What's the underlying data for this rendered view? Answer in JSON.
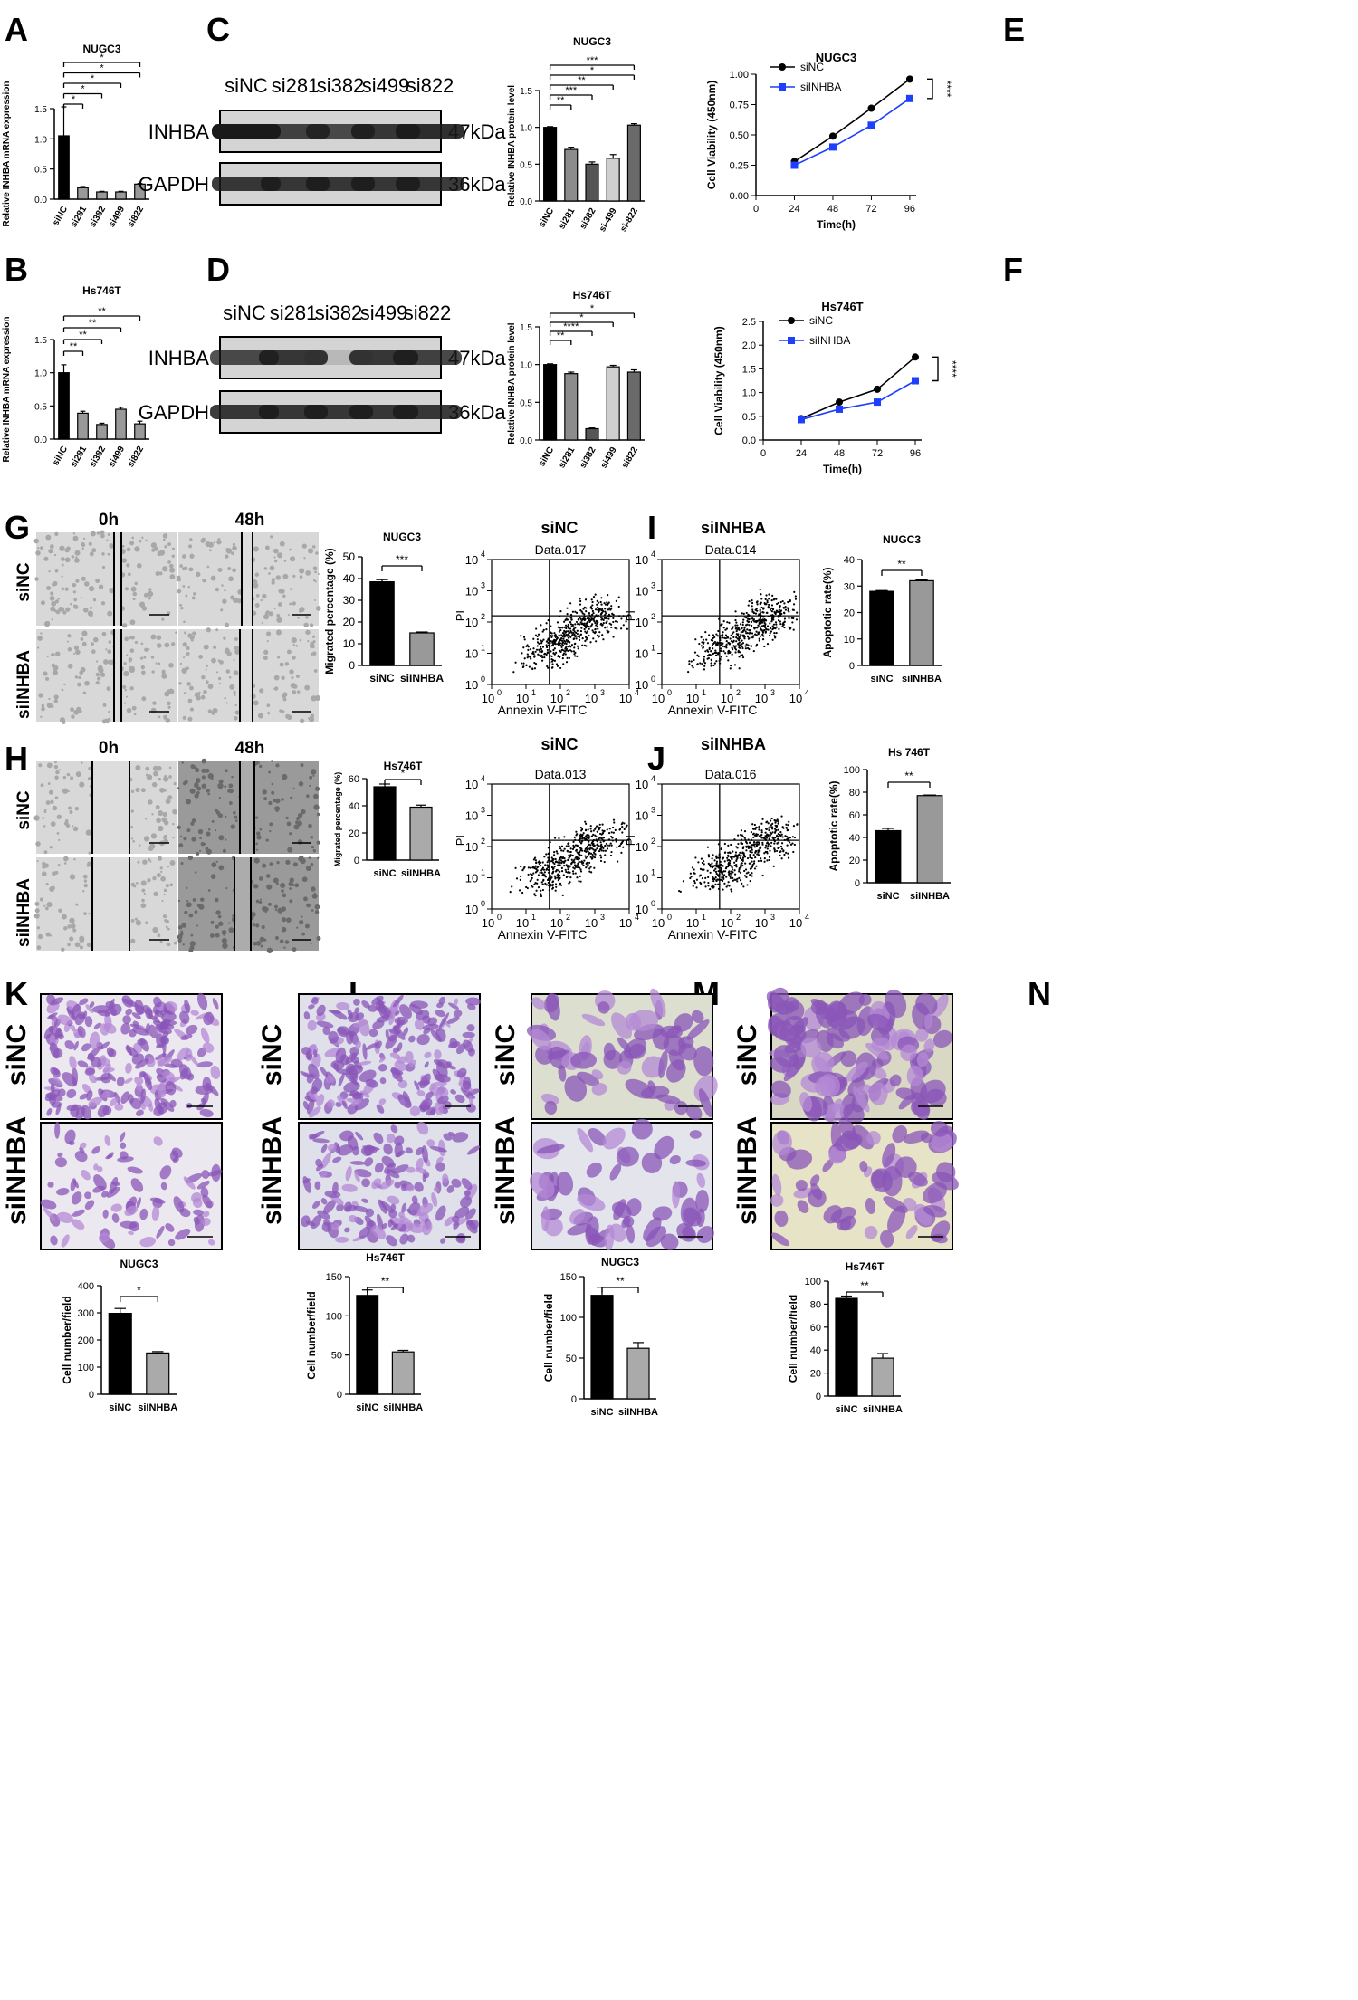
{
  "figure": {
    "panels": {
      "A": {
        "letter": "A",
        "chart_ref": 0
      },
      "B": {
        "letter": "B",
        "chart_ref": 1
      },
      "C": {
        "letter": "C",
        "blot": {
          "lanes": [
            "siNC",
            "si281",
            "si382",
            "si499",
            "si822"
          ],
          "rows": [
            "INHBA",
            "GAPDH"
          ],
          "sizes": [
            "47kDa",
            "36kDa"
          ]
        },
        "chart_ref": 2
      },
      "D": {
        "letter": "D",
        "blot": {
          "lanes": [
            "siNC",
            "si281",
            "si382",
            "si499",
            "si822"
          ],
          "rows": [
            "INHBA",
            "GAPDH"
          ],
          "sizes": [
            "47kDa",
            "36kDa"
          ]
        },
        "chart_ref": 3
      },
      "E": {
        "letter": "E",
        "chart_ref": 4
      },
      "F": {
        "letter": "F",
        "chart_ref": 5
      },
      "G": {
        "letter": "G",
        "times": [
          "0h",
          "48h"
        ],
        "rows": [
          "siNC",
          "siINHBA"
        ],
        "chart_ref": 6
      },
      "H": {
        "letter": "H",
        "times": [
          "0h",
          "48h"
        ],
        "rows": [
          "siNC",
          "siINHBA"
        ],
        "chart_ref": 7
      },
      "I": {
        "letter": "I",
        "groups": [
          "siNC",
          "siINHBA"
        ],
        "plots": [
          "Data.017",
          "Data.014"
        ],
        "chart_ref": 8
      },
      "J": {
        "letter": "J",
        "groups": [
          "siNC",
          "siINHBA"
        ],
        "plots": [
          "Data.013",
          "Data.016"
        ],
        "chart_ref": 9
      },
      "K": {
        "letter": "K",
        "rows": [
          "siNC",
          "siINHBA"
        ],
        "chart_ref": 10
      },
      "L": {
        "letter": "L",
        "rows": [
          "siNC",
          "siINHBA"
        ],
        "chart_ref": 11
      },
      "M": {
        "letter": "M",
        "rows": [
          "siNC",
          "siINHBA"
        ],
        "chart_ref": 12
      },
      "N": {
        "letter": "N",
        "rows": [
          "siNC",
          "siINHBA"
        ],
        "chart_ref": 13
      }
    },
    "flow": {
      "ylabel": "PI",
      "xlabel": "Annexin V-FITC",
      "tick_base": "10",
      "tick_exps": [
        "0",
        "1",
        "2",
        "3",
        "4"
      ]
    },
    "colors": {
      "black": "#000000",
      "gray": "#8c8c8c",
      "light": "#d9d9d9",
      "dark": "#555555",
      "blue": "#1f3fff",
      "stain": "#8a55b8",
      "blot_bg": "#d4d4d4"
    }
  },
  "chart_data": [
    {
      "panel": "A",
      "type": "bar",
      "title": "NUGC3",
      "categories": [
        "siNC",
        "si281",
        "si382",
        "si499",
        "si822"
      ],
      "values": [
        1.05,
        0.19,
        0.12,
        0.12,
        0.25
      ],
      "errors": [
        0.48,
        0.02,
        0.01,
        0.01,
        0.01
      ],
      "ylabel": "Relative INHBA mRNA expression",
      "ylim": [
        0,
        1.5
      ],
      "yticks": [
        "0.0",
        "0.5",
        "1.0",
        "1.5"
      ],
      "ytick_values": [
        0,
        0.5,
        1,
        1.5
      ],
      "bar_colors": [
        "#000000",
        "#999999",
        "#999999",
        "#999999",
        "#999999"
      ],
      "significance": [
        "*",
        "*",
        "*",
        "*",
        "*"
      ]
    },
    {
      "panel": "B",
      "type": "bar",
      "title": "Hs746T",
      "categories": [
        "siNC",
        "si281",
        "si382",
        "si499",
        "si822"
      ],
      "values": [
        1.0,
        0.39,
        0.22,
        0.45,
        0.23
      ],
      "errors": [
        0.12,
        0.03,
        0.02,
        0.03,
        0.04
      ],
      "ylabel": "Relative INHBA mRNA expression",
      "ylim": [
        0,
        1.5
      ],
      "yticks": [
        "0.0",
        "0.5",
        "1.0",
        "1.5"
      ],
      "ytick_values": [
        0,
        0.5,
        1,
        1.5
      ],
      "bar_colors": [
        "#000000",
        "#999999",
        "#999999",
        "#999999",
        "#999999"
      ],
      "significance": [
        "**",
        "**",
        "**",
        "**"
      ]
    },
    {
      "panel": "C",
      "type": "bar",
      "title": "NUGC3",
      "categories": [
        "siNC",
        "si281",
        "si382",
        "si-499",
        "si-822"
      ],
      "values": [
        1.0,
        0.7,
        0.5,
        0.58,
        1.03
      ],
      "errors": [
        0.01,
        0.03,
        0.03,
        0.05,
        0.02
      ],
      "ylabel": "Relative INHBA protein level",
      "ylim": [
        0,
        1.5
      ],
      "yticks": [
        "0.0",
        "0.5",
        "1.0",
        "1.5"
      ],
      "ytick_values": [
        0,
        0.5,
        1,
        1.5
      ],
      "bar_colors": [
        "#000000",
        "#8c8c8c",
        "#555555",
        "#cfcfcf",
        "#6a6a6a"
      ],
      "significance": [
        "**",
        "***",
        "**",
        "*",
        "***"
      ]
    },
    {
      "panel": "D",
      "type": "bar",
      "title": "Hs746T",
      "categories": [
        "siNC",
        "si281",
        "si382",
        "si499",
        "si822"
      ],
      "values": [
        1.0,
        0.88,
        0.15,
        0.97,
        0.9
      ],
      "errors": [
        0.01,
        0.02,
        0.01,
        0.02,
        0.03
      ],
      "ylabel": "Relative INHBA protein level",
      "ylim": [
        0,
        1.5
      ],
      "yticks": [
        "0.0",
        "0.5",
        "1.0",
        "1.5"
      ],
      "ytick_values": [
        0,
        0.5,
        1,
        1.5
      ],
      "bar_colors": [
        "#000000",
        "#8c8c8c",
        "#555555",
        "#cfcfcf",
        "#6a6a6a"
      ],
      "significance": [
        "**",
        "****",
        "*",
        "*"
      ]
    },
    {
      "panel": "E",
      "type": "line",
      "title": "NUGC3",
      "x": [
        24,
        48,
        72,
        96
      ],
      "series": [
        {
          "name": "siNC",
          "values": [
            0.28,
            0.49,
            0.72,
            0.96
          ],
          "errors": [
            0.01,
            0.01,
            0.01,
            0.02
          ]
        },
        {
          "name": "siINHBA",
          "values": [
            0.25,
            0.4,
            0.58,
            0.8
          ],
          "errors": [
            0.01,
            0.01,
            0.01,
            0.01
          ]
        }
      ],
      "xlabel": "Time(h)",
      "ylabel": "Cell Viability (450nm)",
      "ylim": [
        0,
        1
      ],
      "xlim": [
        0,
        100
      ],
      "xticks": [
        "0",
        "24",
        "48",
        "72",
        "96"
      ],
      "yticks": [
        "0.00",
        "0.25",
        "0.50",
        "0.75",
        "1.00"
      ],
      "significance": "****"
    },
    {
      "panel": "F",
      "type": "line",
      "title": "Hs746T",
      "x": [
        24,
        48,
        72,
        96
      ],
      "series": [
        {
          "name": "siNC",
          "values": [
            0.45,
            0.8,
            1.07,
            1.75
          ],
          "errors": [
            0.01,
            0.02,
            0.02,
            0.04
          ]
        },
        {
          "name": "siINHBA",
          "values": [
            0.43,
            0.65,
            0.8,
            1.25
          ],
          "errors": [
            0.01,
            0.01,
            0.01,
            0.03
          ]
        }
      ],
      "xlabel": "Time(h)",
      "ylabel": "Cell Viability (450nm)",
      "ylim": [
        0,
        2.5
      ],
      "xlim": [
        0,
        100
      ],
      "xticks": [
        "0",
        "24",
        "48",
        "72",
        "96"
      ],
      "yticks": [
        "0.0",
        "0.5",
        "1.0",
        "1.5",
        "2.0",
        "2.5"
      ],
      "significance": "****"
    },
    {
      "panel": "G",
      "type": "bar",
      "title": "NUGC3",
      "categories": [
        "siNC",
        "siINHBA"
      ],
      "values": [
        38.5,
        15
      ],
      "errors": [
        1,
        0.4
      ],
      "ylabel": "Migrated percentage (%)",
      "ylim": [
        0,
        50
      ],
      "yticks": [
        "0",
        "10",
        "20",
        "30",
        "40",
        "50"
      ],
      "ytick_values": [
        0,
        10,
        20,
        30,
        40,
        50
      ],
      "bar_colors": [
        "#000000",
        "#999999"
      ],
      "significance": [
        "***"
      ]
    },
    {
      "panel": "H",
      "type": "bar",
      "title": "Hs746T",
      "categories": [
        "siNC",
        "siINHBA"
      ],
      "values": [
        54,
        39
      ],
      "errors": [
        2,
        1.5
      ],
      "ylabel": "Migrated percentage (%)",
      "ylim": [
        0,
        60
      ],
      "yticks": [
        "0",
        "20",
        "40",
        "60"
      ],
      "ytick_values": [
        0,
        20,
        40,
        60
      ],
      "bar_colors": [
        "#000000",
        "#aaaaaa"
      ],
      "significance": [
        "*"
      ]
    },
    {
      "panel": "I",
      "type": "bar",
      "title": "NUGC3",
      "categories": [
        "siNC",
        "siINHBA"
      ],
      "values": [
        28,
        32
      ],
      "errors": [
        0.3,
        0.3
      ],
      "ylabel": "Apoptotic rate(%)",
      "ylim": [
        0,
        40
      ],
      "yticks": [
        "0",
        "10",
        "20",
        "30",
        "40"
      ],
      "ytick_values": [
        0,
        10,
        20,
        30,
        40
      ],
      "bar_colors": [
        "#000000",
        "#999999"
      ],
      "significance": [
        "**"
      ]
    },
    {
      "panel": "J",
      "type": "bar",
      "title": "Hs 746T",
      "categories": [
        "siNC",
        "siINHBA"
      ],
      "values": [
        46,
        77
      ],
      "errors": [
        2,
        0.5
      ],
      "ylabel": "Apoptotic rate(%)",
      "ylim": [
        0,
        100
      ],
      "yticks": [
        "0",
        "20",
        "40",
        "60",
        "80",
        "100"
      ],
      "ytick_values": [
        0,
        20,
        40,
        60,
        80,
        100
      ],
      "bar_colors": [
        "#000000",
        "#999999"
      ],
      "significance": [
        "**"
      ]
    },
    {
      "panel": "K",
      "type": "bar",
      "title": "NUGC3",
      "categories": [
        "siNC",
        "siINHBA"
      ],
      "values": [
        298,
        152
      ],
      "errors": [
        18,
        5
      ],
      "ylabel": "Cell number/field",
      "ylim": [
        0,
        400
      ],
      "yticks": [
        "0",
        "100",
        "200",
        "300",
        "400"
      ],
      "ytick_values": [
        0,
        100,
        200,
        300,
        400
      ],
      "bar_colors": [
        "#000000",
        "#aaaaaa"
      ],
      "significance": [
        "*"
      ]
    },
    {
      "panel": "L",
      "type": "bar",
      "title": "Hs746T",
      "categories": [
        "siNC",
        "siINHBA"
      ],
      "values": [
        126,
        54
      ],
      "errors": [
        7,
        2
      ],
      "ylabel": "Cell number/field",
      "ylim": [
        0,
        150
      ],
      "yticks": [
        "0",
        "50",
        "100",
        "150"
      ],
      "ytick_values": [
        0,
        50,
        100,
        150
      ],
      "bar_colors": [
        "#000000",
        "#aaaaaa"
      ],
      "significance": [
        "**"
      ]
    },
    {
      "panel": "M",
      "type": "bar",
      "title": "NUGC3",
      "categories": [
        "siNC",
        "siINHBA"
      ],
      "values": [
        127,
        62
      ],
      "errors": [
        10,
        7
      ],
      "ylabel": "Cell number/field",
      "ylim": [
        0,
        150
      ],
      "yticks": [
        "0",
        "50",
        "100",
        "150"
      ],
      "ytick_values": [
        0,
        50,
        100,
        150
      ],
      "bar_colors": [
        "#000000",
        "#aaaaaa"
      ],
      "significance": [
        "**"
      ]
    },
    {
      "panel": "N",
      "type": "bar",
      "title": "Hs746T",
      "categories": [
        "siNC",
        "siINHBA"
      ],
      "values": [
        85,
        33
      ],
      "errors": [
        2,
        4
      ],
      "ylabel": "Cell number/field",
      "ylim": [
        0,
        100
      ],
      "yticks": [
        "0",
        "20",
        "40",
        "60",
        "80",
        "100"
      ],
      "ytick_values": [
        0,
        20,
        40,
        60,
        80,
        100
      ],
      "bar_colors": [
        "#000000",
        "#aaaaaa"
      ],
      "significance": [
        "**"
      ]
    }
  ]
}
